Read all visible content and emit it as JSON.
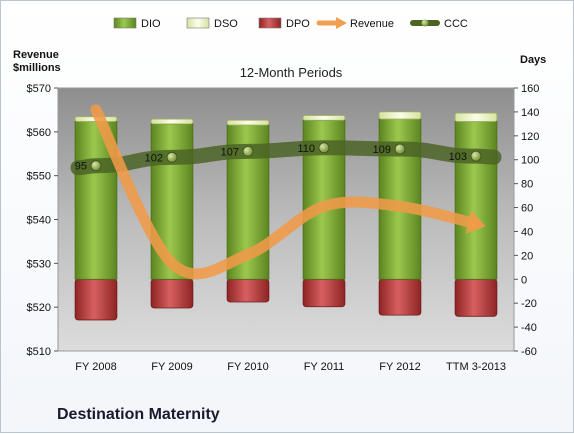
{
  "company": "Destination Maternity",
  "chart_data": {
    "type": "bar",
    "title": "12-Month Periods",
    "categories": [
      "FY 2008",
      "FY 2009",
      "FY 2010",
      "FY 2011",
      "FY 2012",
      "TTM 3-2013"
    ],
    "y_left": {
      "label_line1": "Revenue",
      "label_line2": "$millions",
      "min": 510,
      "max": 570,
      "step": 10,
      "tick_labels": [
        "$510",
        "$520",
        "$530",
        "$540",
        "$550",
        "$560",
        "$570"
      ]
    },
    "y_right": {
      "label": "Days",
      "min": -60,
      "max": 160,
      "step": 20,
      "tick_labels": [
        "-60",
        "-40",
        "-20",
        "0",
        "20",
        "40",
        "60",
        "80",
        "100",
        "120",
        "140",
        "160"
      ]
    },
    "series": [
      {
        "name": "DIO",
        "axis": "right",
        "kind": "stacked-bar",
        "values": [
          132,
          130,
          129,
          133,
          134,
          132
        ],
        "color": "#6e9a28"
      },
      {
        "name": "DSO",
        "axis": "right",
        "kind": "stacked-bar",
        "values": [
          4,
          4,
          4,
          4,
          6,
          7
        ],
        "color": "#e8f0c0"
      },
      {
        "name": "DPO",
        "axis": "right",
        "kind": "negative-bar",
        "values": [
          -34,
          -24,
          -19,
          -23,
          -30,
          -31
        ],
        "color": "#b03434"
      },
      {
        "name": "Revenue",
        "axis": "left",
        "kind": "arrow-line",
        "values": [
          565,
          530,
          532,
          543,
          543,
          539
        ],
        "color": "#f0a050"
      },
      {
        "name": "CCC",
        "axis": "right",
        "kind": "line",
        "values": [
          95,
          102,
          107,
          110,
          109,
          103
        ],
        "color": "#556b2f"
      }
    ],
    "legend": {
      "position": "top",
      "items": [
        {
          "name": "DIO",
          "symbol": "bar",
          "color": "#6e9a28"
        },
        {
          "name": "DSO",
          "symbol": "bar",
          "color": "#eef4cc"
        },
        {
          "name": "DPO",
          "symbol": "bar",
          "color": "#b03434"
        },
        {
          "name": "Revenue",
          "symbol": "arrow",
          "color": "#f0a050"
        },
        {
          "name": "CCC",
          "symbol": "line",
          "color": "#556b2f"
        }
      ]
    },
    "data_labels": [
      "95",
      "102",
      "107",
      "110",
      "109",
      "103"
    ],
    "plot_background": "#a6a6a6",
    "grid": false
  }
}
